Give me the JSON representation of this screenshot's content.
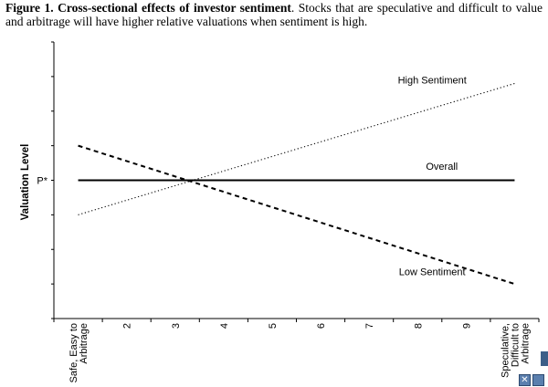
{
  "caption": {
    "bold": "Figure 1. Cross-sectional effects of investor sentiment",
    "rest": ". Stocks that are speculative and difficult to value and arbitrage will have higher relative valuations when sentiment is high."
  },
  "chart_data": {
    "type": "line",
    "title": "",
    "xlabel": "",
    "ylabel": "Valuation Level",
    "x_ticks": [
      "Safe, Easy to Arbitrage",
      "2",
      "3",
      "4",
      "5",
      "6",
      "7",
      "8",
      "9",
      "Speculative, Difficult to Arbitrage"
    ],
    "xlim": [
      0.5,
      10.5
    ],
    "ylim": [
      0,
      8
    ],
    "y_tick_label": {
      "value": 4,
      "label": "P*"
    },
    "grid": false,
    "series": [
      {
        "name": "High Sentiment",
        "style": "dotted",
        "x": [
          1,
          10
        ],
        "y": [
          3,
          6.8
        ]
      },
      {
        "name": "Overall",
        "style": "solid",
        "x": [
          1,
          10
        ],
        "y": [
          4,
          4
        ]
      },
      {
        "name": "Low Sentiment",
        "style": "dashed",
        "x": [
          1,
          10
        ],
        "y": [
          5,
          1
        ]
      }
    ],
    "annotations": [
      "High Sentiment",
      "Overall",
      "Low Sentiment"
    ]
  },
  "colors": {
    "line": "#000000",
    "axis": "#000000",
    "control": "#3c5e88"
  }
}
